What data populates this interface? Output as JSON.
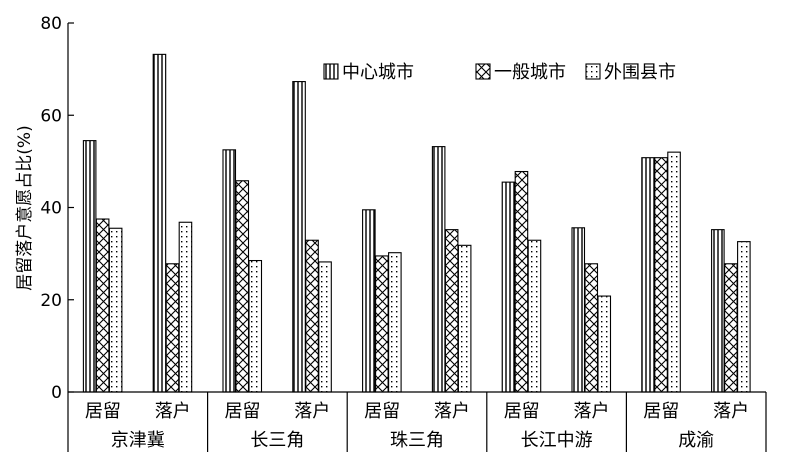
{
  "chart_data": {
    "type": "bar",
    "ylabel": "居留落户意愿占比(%)",
    "ylim": [
      0,
      80
    ],
    "yticks": [
      0,
      20,
      40,
      60,
      80
    ],
    "grid": false,
    "legend_position": "top-right",
    "groups": [
      {
        "name": "京津冀",
        "subcategories": [
          "居留",
          "落户"
        ]
      },
      {
        "name": "长三角",
        "subcategories": [
          "居留",
          "落户"
        ]
      },
      {
        "name": "珠三角",
        "subcategories": [
          "居留",
          "落户"
        ]
      },
      {
        "name": "长江中游",
        "subcategories": [
          "居留",
          "落户"
        ]
      },
      {
        "name": "成渝",
        "subcategories": [
          "居留",
          "落户"
        ]
      }
    ],
    "series": [
      {
        "name": "中心城市",
        "pattern": "vertical-lines",
        "values": [
          54.5,
          73.2,
          52.5,
          67.3,
          39.5,
          53.2,
          45.5,
          35.6,
          50.8,
          35.2
        ]
      },
      {
        "name": "一般城市",
        "pattern": "crosshatch",
        "values": [
          37.5,
          27.8,
          45.8,
          32.9,
          29.5,
          35.2,
          47.8,
          27.8,
          50.8,
          27.8
        ]
      },
      {
        "name": "外围县市",
        "pattern": "dots",
        "values": [
          35.5,
          36.8,
          28.5,
          28.2,
          30.2,
          31.8,
          32.9,
          20.8,
          52.0,
          32.6
        ]
      }
    ]
  }
}
